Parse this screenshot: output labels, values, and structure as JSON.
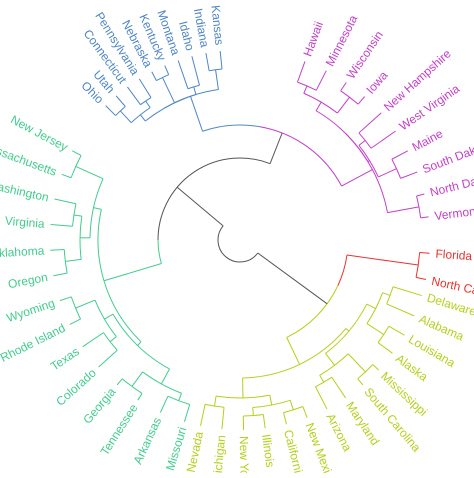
{
  "colors": {
    "root": "#555555",
    "blue": "#4e86c8",
    "magenta": "#c43fc8",
    "red": "#e8332e",
    "yellow": "#b6cf1c",
    "green": "#42cc8e"
  },
  "clusters": [
    {
      "name": "cluster-blue",
      "color": "blue",
      "leaves": [
        "Ohio",
        "Utah",
        "Connecticut",
        "Pennsylvania",
        "Nebraska",
        "Kentucky",
        "Montana",
        "Idaho",
        "Indiana",
        "Kansas"
      ]
    },
    {
      "name": "cluster-magenta",
      "color": "magenta",
      "leaves": [
        "Hawaii",
        "Minnesota",
        "Wisconsin",
        "Iowa",
        "New Hampshire",
        "West Virginia",
        "Maine",
        "South Dakota",
        "North Dakota",
        "Vermont"
      ]
    },
    {
      "name": "cluster-red",
      "color": "red",
      "leaves": [
        "Florida",
        "North Carolina"
      ]
    },
    {
      "name": "cluster-yellow",
      "color": "yellow",
      "leaves": [
        "Delaware",
        "Alabama",
        "Louisiana",
        "Alaska",
        "Mississippi",
        "South Carolina",
        "Maryland",
        "Arizona",
        "New Mexico",
        "California",
        "Illinois",
        "New York",
        "Michigan",
        "Nevada"
      ]
    },
    {
      "name": "cluster-green",
      "color": "green",
      "leaves": [
        "Missouri",
        "Arkansas",
        "Tennessee",
        "Georgia",
        "Colorado",
        "Texas",
        "Rhode Island",
        "Wyoming",
        "Oregon",
        "Oklahoma",
        "Virginia",
        "Washington",
        "Massachusetts",
        "New Jersey"
      ]
    }
  ]
}
